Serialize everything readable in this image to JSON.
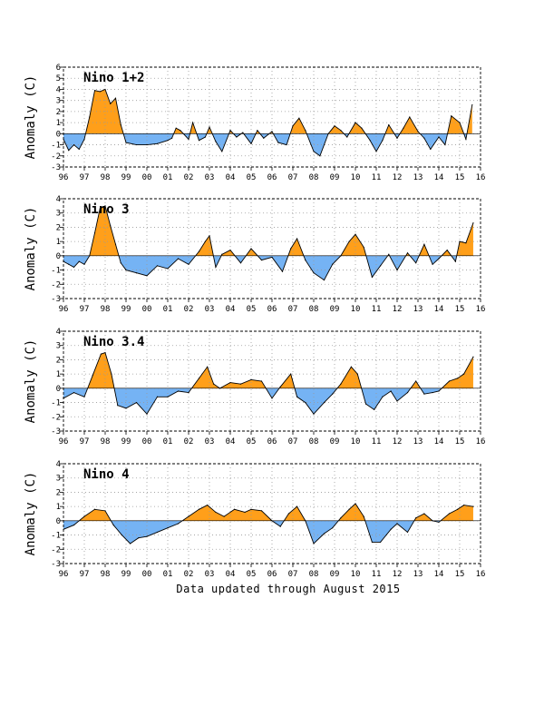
{
  "footer": "Data updated through August 2015",
  "colors": {
    "positive": "#FF9F1A",
    "negative": "#75B3F4",
    "line": "#000000",
    "grid": "#9a9a9a",
    "frame": "#000000"
  },
  "chart_data": [
    {
      "type": "area",
      "title": "Nino 1+2",
      "ylabel": "Anomaly (C)",
      "ylim": [
        -3,
        6
      ],
      "y_ticks": [
        "-3",
        "-2",
        "-1",
        "0",
        "1",
        "2",
        "3",
        "4",
        "5",
        "6"
      ],
      "x_ticks": [
        "96",
        "97",
        "98",
        "99",
        "00",
        "01",
        "02",
        "03",
        "04",
        "05",
        "06",
        "07",
        "08",
        "09",
        "10",
        "11",
        "12",
        "13",
        "14",
        "15",
        "16"
      ],
      "xlim": [
        1996.0,
        2016.0
      ],
      "grid": true,
      "x": [
        1996.0,
        1996.25,
        1996.5,
        1996.75,
        1997.0,
        1997.25,
        1997.5,
        1997.75,
        1998.0,
        1998.25,
        1998.5,
        1998.75,
        1999.0,
        1999.5,
        2000.0,
        2000.5,
        2001.0,
        2001.2,
        2001.4,
        2001.6,
        2002.0,
        2002.2,
        2002.5,
        2002.8,
        2003.0,
        2003.3,
        2003.6,
        2004.0,
        2004.3,
        2004.6,
        2005.0,
        2005.3,
        2005.6,
        2006.0,
        2006.3,
        2006.7,
        2007.0,
        2007.3,
        2007.6,
        2008.0,
        2008.3,
        2008.7,
        2009.0,
        2009.3,
        2009.6,
        2010.0,
        2010.3,
        2010.7,
        2011.0,
        2011.3,
        2011.6,
        2012.0,
        2012.3,
        2012.6,
        2013.0,
        2013.3,
        2013.6,
        2014.0,
        2014.3,
        2014.6,
        2015.0,
        2015.3,
        2015.6
      ],
      "values": [
        -0.5,
        -1.5,
        -1.0,
        -1.4,
        -0.5,
        1.5,
        3.9,
        3.8,
        4.0,
        2.7,
        3.2,
        0.8,
        -0.8,
        -1.0,
        -1.0,
        -0.9,
        -0.6,
        -0.4,
        0.5,
        0.3,
        -0.5,
        1.0,
        -0.6,
        -0.3,
        0.6,
        -0.7,
        -1.6,
        0.3,
        -0.3,
        0.1,
        -0.9,
        0.3,
        -0.4,
        0.2,
        -0.8,
        -1.0,
        0.7,
        1.4,
        0.3,
        -1.6,
        -2.0,
        0.0,
        0.7,
        0.3,
        -0.3,
        1.0,
        0.5,
        -0.6,
        -1.6,
        -0.6,
        0.8,
        -0.4,
        0.5,
        1.5,
        0.2,
        -0.4,
        -1.4,
        -0.3,
        -1.0,
        1.6,
        1.0,
        -0.5,
        2.6
      ]
    },
    {
      "type": "area",
      "title": "Nino 3",
      "ylabel": "Anomaly (C)",
      "ylim": [
        -3,
        4
      ],
      "y_ticks": [
        "-3",
        "-2",
        "-1",
        "0",
        "1",
        "2",
        "3",
        "4"
      ],
      "x_ticks": [
        "96",
        "97",
        "98",
        "99",
        "00",
        "01",
        "02",
        "03",
        "04",
        "05",
        "06",
        "07",
        "08",
        "09",
        "10",
        "11",
        "12",
        "13",
        "14",
        "15",
        "16"
      ],
      "xlim": [
        1996.0,
        2016.0
      ],
      "grid": true,
      "x": [
        1996.0,
        1996.25,
        1996.5,
        1996.75,
        1997.0,
        1997.25,
        1997.5,
        1997.75,
        1998.0,
        1998.25,
        1998.5,
        1998.75,
        1999.0,
        1999.5,
        2000.0,
        2000.5,
        2001.0,
        2001.5,
        2002.0,
        2002.5,
        2002.8,
        2003.0,
        2003.3,
        2003.6,
        2004.0,
        2004.5,
        2005.0,
        2005.5,
        2006.0,
        2006.5,
        2006.9,
        2007.2,
        2007.6,
        2008.0,
        2008.5,
        2008.9,
        2009.3,
        2009.7,
        2010.0,
        2010.4,
        2010.8,
        2011.2,
        2011.6,
        2012.0,
        2012.5,
        2012.9,
        2013.3,
        2013.7,
        2014.0,
        2014.4,
        2014.8,
        2015.0,
        2015.3,
        2015.65
      ],
      "values": [
        -0.4,
        -0.6,
        -0.8,
        -0.4,
        -0.6,
        0.0,
        1.6,
        3.3,
        3.5,
        2.1,
        0.8,
        -0.5,
        -1.0,
        -1.2,
        -1.4,
        -0.7,
        -0.9,
        -0.2,
        -0.6,
        0.3,
        1.0,
        1.4,
        -0.8,
        0.1,
        0.4,
        -0.5,
        0.5,
        -0.3,
        -0.1,
        -1.1,
        0.5,
        1.2,
        -0.3,
        -1.2,
        -1.7,
        -0.6,
        0.0,
        1.0,
        1.5,
        0.6,
        -1.5,
        -0.7,
        0.1,
        -1.0,
        0.2,
        -0.5,
        0.8,
        -0.6,
        -0.2,
        0.4,
        -0.4,
        1.0,
        0.9,
        2.3
      ]
    },
    {
      "type": "area",
      "title": "Nino 3.4",
      "ylabel": "Anomaly (C)",
      "ylim": [
        -3,
        4
      ],
      "y_ticks": [
        "-3",
        "-2",
        "-1",
        "0",
        "1",
        "2",
        "3",
        "4"
      ],
      "x_ticks": [
        "96",
        "97",
        "98",
        "99",
        "00",
        "01",
        "02",
        "03",
        "04",
        "05",
        "06",
        "07",
        "08",
        "09",
        "10",
        "11",
        "12",
        "13",
        "14",
        "15",
        "16"
      ],
      "xlim": [
        1996.0,
        2016.0
      ],
      "grid": true,
      "x": [
        1996.0,
        1996.5,
        1997.0,
        1997.4,
        1997.8,
        1998.0,
        1998.3,
        1998.6,
        1999.0,
        1999.5,
        2000.0,
        2000.5,
        2001.0,
        2001.5,
        2002.0,
        2002.5,
        2002.9,
        2003.2,
        2003.5,
        2004.0,
        2004.5,
        2005.0,
        2005.5,
        2006.0,
        2006.4,
        2006.9,
        2007.2,
        2007.6,
        2008.0,
        2008.5,
        2008.9,
        2009.3,
        2009.8,
        2010.1,
        2010.5,
        2010.9,
        2011.3,
        2011.7,
        2012.0,
        2012.5,
        2012.9,
        2013.3,
        2013.7,
        2014.0,
        2014.5,
        2014.9,
        2015.2,
        2015.65
      ],
      "values": [
        -0.7,
        -0.3,
        -0.6,
        0.9,
        2.4,
        2.5,
        1.0,
        -1.2,
        -1.4,
        -1.0,
        -1.8,
        -0.6,
        -0.6,
        -0.2,
        -0.3,
        0.7,
        1.5,
        0.3,
        0.0,
        0.4,
        0.3,
        0.6,
        0.5,
        -0.7,
        0.1,
        1.0,
        -0.6,
        -1.0,
        -1.8,
        -1.0,
        -0.4,
        0.3,
        1.5,
        1.0,
        -1.1,
        -1.5,
        -0.6,
        -0.2,
        -0.9,
        -0.3,
        0.5,
        -0.4,
        -0.3,
        -0.2,
        0.5,
        0.7,
        1.0,
        2.2
      ]
    },
    {
      "type": "area",
      "title": "Nino 4",
      "ylabel": "Anomaly (C)",
      "ylim": [
        -3,
        4
      ],
      "y_ticks": [
        "-3",
        "-2",
        "-1",
        "0",
        "1",
        "2",
        "3",
        "4"
      ],
      "x_ticks": [
        "96",
        "97",
        "98",
        "99",
        "00",
        "01",
        "02",
        "03",
        "04",
        "05",
        "06",
        "07",
        "08",
        "09",
        "10",
        "11",
        "12",
        "13",
        "14",
        "15",
        "16"
      ],
      "xlim": [
        1996.0,
        2016.0
      ],
      "grid": true,
      "x": [
        1996.0,
        1996.5,
        1997.0,
        1997.5,
        1998.0,
        1998.4,
        1998.8,
        1999.2,
        1999.6,
        2000.0,
        2000.5,
        2001.0,
        2001.5,
        2002.0,
        2002.5,
        2002.9,
        2003.3,
        2003.7,
        2004.2,
        2004.7,
        2005.0,
        2005.5,
        2006.0,
        2006.4,
        2006.8,
        2007.2,
        2007.6,
        2008.0,
        2008.5,
        2008.9,
        2009.3,
        2009.7,
        2010.0,
        2010.4,
        2010.8,
        2011.2,
        2011.7,
        2012.0,
        2012.5,
        2012.9,
        2013.3,
        2013.7,
        2014.0,
        2014.5,
        2014.9,
        2015.2,
        2015.65
      ],
      "values": [
        -0.6,
        -0.3,
        0.3,
        0.8,
        0.7,
        -0.3,
        -1.0,
        -1.6,
        -1.2,
        -1.1,
        -0.8,
        -0.5,
        -0.2,
        0.3,
        0.8,
        1.1,
        0.6,
        0.3,
        0.8,
        0.6,
        0.8,
        0.7,
        0.0,
        -0.4,
        0.5,
        1.0,
        0.0,
        -1.6,
        -0.9,
        -0.5,
        0.2,
        0.8,
        1.2,
        0.3,
        -1.5,
        -1.5,
        -0.6,
        -0.2,
        -0.8,
        0.2,
        0.5,
        0.0,
        -0.1,
        0.5,
        0.8,
        1.1,
        1.0
      ]
    }
  ]
}
